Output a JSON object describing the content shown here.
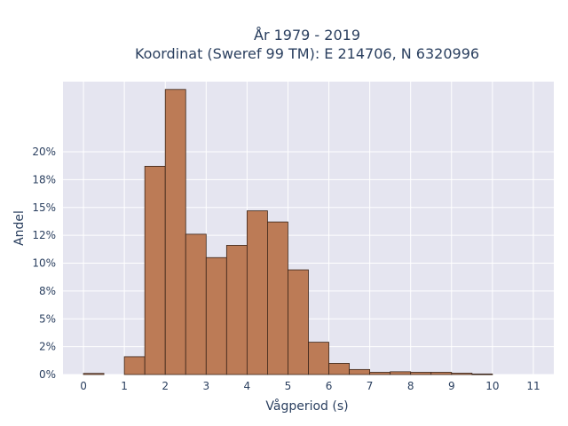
{
  "chart_data": {
    "type": "bar",
    "title_lines": [
      "År 1979 - 2019",
      "Koordinat (Sweref 99 TM): E 214706, N 6320996"
    ],
    "xlabel": "Vågperiod (s)",
    "ylabel": "Andel",
    "bin_width": 0.5,
    "bins": [
      {
        "x0": 0.0,
        "value": 0.1
      },
      {
        "x0": 0.5,
        "value": 0.0
      },
      {
        "x0": 1.0,
        "value": 1.6
      },
      {
        "x0": 1.5,
        "value": 18.7
      },
      {
        "x0": 2.0,
        "value": 25.6
      },
      {
        "x0": 2.5,
        "value": 12.6
      },
      {
        "x0": 3.0,
        "value": 10.5
      },
      {
        "x0": 3.5,
        "value": 11.6
      },
      {
        "x0": 4.0,
        "value": 14.7
      },
      {
        "x0": 4.5,
        "value": 13.7
      },
      {
        "x0": 5.0,
        "value": 9.4
      },
      {
        "x0": 5.5,
        "value": 2.9
      },
      {
        "x0": 6.0,
        "value": 1.0
      },
      {
        "x0": 6.5,
        "value": 0.45
      },
      {
        "x0": 7.0,
        "value": 0.2
      },
      {
        "x0": 7.5,
        "value": 0.25
      },
      {
        "x0": 8.0,
        "value": 0.2
      },
      {
        "x0": 8.5,
        "value": 0.2
      },
      {
        "x0": 9.0,
        "value": 0.12
      },
      {
        "x0": 9.5,
        "value": 0.05
      }
    ],
    "x_ticks": [
      "0",
      "1",
      "2",
      "3",
      "4",
      "5",
      "6",
      "7",
      "8",
      "9",
      "10",
      "11"
    ],
    "y_ticks": [
      "0%",
      "2%",
      "5%",
      "8%",
      "10%",
      "12%",
      "15%",
      "18%",
      "20%"
    ],
    "xlim": [
      -0.5,
      11.5
    ],
    "ylim": [
      0,
      26.3
    ],
    "bar_color": "#bc7b56",
    "bar_edge_color": "#3a2418",
    "plot_background": "#e5e5f0",
    "grid": true
  }
}
